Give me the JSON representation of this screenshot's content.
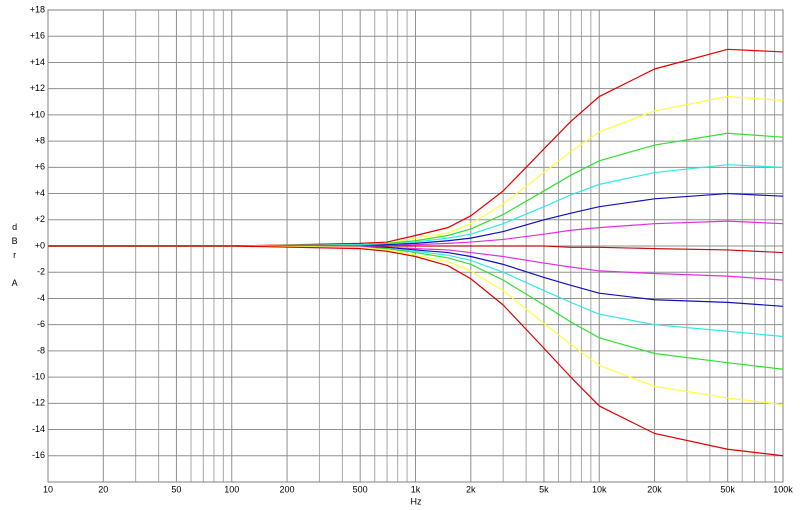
{
  "chart_data": {
    "type": "line",
    "x_label": "Hz",
    "y_label": "dBr A",
    "log_x": true,
    "grid": true,
    "xlim": [
      10,
      100000
    ],
    "ylim": [
      -18,
      18
    ],
    "xticks": [
      10,
      20,
      50,
      100,
      200,
      500,
      {
        "value": 1000,
        "label": "1k"
      },
      {
        "value": 2000,
        "label": "2k"
      },
      {
        "value": 5000,
        "label": "5k"
      },
      {
        "value": 10000,
        "label": "10k"
      },
      {
        "value": 20000,
        "label": "20k"
      },
      {
        "value": 50000,
        "label": "50k"
      },
      {
        "value": 100000,
        "label": "100k"
      }
    ],
    "xminor": [
      30,
      40,
      60,
      70,
      80,
      90,
      300,
      400,
      600,
      700,
      800,
      900,
      3000,
      4000,
      6000,
      7000,
      8000,
      9000,
      30000,
      40000,
      60000,
      70000,
      80000,
      90000
    ],
    "yticks": [
      {
        "value": 18,
        "label": "+18"
      },
      {
        "value": 16,
        "label": "+16"
      },
      {
        "value": 14,
        "label": "+14"
      },
      {
        "value": 12,
        "label": "+12"
      },
      {
        "value": 10,
        "label": "+10"
      },
      {
        "value": 8,
        "label": "+8"
      },
      {
        "value": 6,
        "label": "+6"
      },
      {
        "value": 4,
        "label": "+4"
      },
      {
        "value": 2,
        "label": "+2"
      },
      {
        "value": 0,
        "label": "+0"
      },
      -2,
      -4,
      -6,
      -8,
      -10,
      -12,
      -14,
      -16
    ],
    "x": [
      10,
      100,
      500,
      700,
      1000,
      1500,
      2000,
      3000,
      5000,
      7000,
      10000,
      20000,
      50000,
      100000
    ],
    "series": [
      {
        "color": "#e00000",
        "values": [
          0,
          0,
          0.2,
          0.3,
          0.8,
          1.4,
          2.3,
          4.2,
          7.4,
          9.5,
          11.4,
          13.5,
          15,
          14.8
        ]
      },
      {
        "color": "#ffff40",
        "values": [
          0,
          0,
          0.1,
          0.2,
          0.6,
          1.0,
          1.7,
          3.2,
          5.6,
          7.2,
          8.7,
          10.3,
          11.4,
          11.1
        ]
      },
      {
        "color": "#30e030",
        "values": [
          0,
          0,
          0.1,
          0.2,
          0.4,
          0.8,
          1.3,
          2.4,
          4.2,
          5.4,
          6.5,
          7.7,
          8.6,
          8.3
        ]
      },
      {
        "color": "#30e8e8",
        "values": [
          0,
          0,
          0.1,
          0.1,
          0.3,
          0.6,
          0.9,
          1.7,
          3.0,
          3.9,
          4.7,
          5.6,
          6.2,
          6.0
        ]
      },
      {
        "color": "#1010c0",
        "values": [
          0,
          0,
          0,
          0.1,
          0.2,
          0.4,
          0.6,
          1.1,
          2.0,
          2.5,
          3.0,
          3.6,
          4.0,
          3.8
        ]
      },
      {
        "color": "#e030e0",
        "values": [
          0,
          0,
          0,
          0,
          0.1,
          0.2,
          0.3,
          0.5,
          0.9,
          1.2,
          1.4,
          1.7,
          1.9,
          1.7
        ]
      },
      {
        "color": "#c01010",
        "values": [
          0,
          0,
          0,
          0,
          0,
          0,
          0,
          0,
          0,
          -0.1,
          -0.1,
          -0.2,
          -0.3,
          -0.5
        ]
      },
      {
        "color": "#e030e0",
        "values": [
          0,
          0,
          0,
          -0.1,
          -0.2,
          -0.3,
          -0.5,
          -0.8,
          -1.3,
          -1.6,
          -1.9,
          -2.1,
          -2.3,
          -2.6
        ]
      },
      {
        "color": "#1010c0",
        "values": [
          0,
          0,
          -0.1,
          -0.1,
          -0.3,
          -0.5,
          -0.8,
          -1.4,
          -2.4,
          -3.0,
          -3.6,
          -4.1,
          -4.3,
          -4.6
        ]
      },
      {
        "color": "#30e8e8",
        "values": [
          0,
          0,
          -0.1,
          -0.2,
          -0.4,
          -0.7,
          -1.1,
          -2.0,
          -3.4,
          -4.3,
          -5.2,
          -6.0,
          -6.5,
          -6.9
        ]
      },
      {
        "color": "#30e030",
        "values": [
          0,
          0,
          -0.1,
          -0.2,
          -0.5,
          -0.9,
          -1.4,
          -2.6,
          -4.5,
          -5.8,
          -7.0,
          -8.2,
          -8.9,
          -9.4
        ]
      },
      {
        "color": "#ffff40",
        "values": [
          0,
          0,
          -0.1,
          -0.3,
          -0.7,
          -1.2,
          -1.9,
          -3.4,
          -5.9,
          -7.5,
          -9.1,
          -10.7,
          -11.6,
          -12.1
        ]
      },
      {
        "color": "#e00000",
        "values": [
          0,
          0,
          -0.2,
          -0.4,
          -0.8,
          -1.5,
          -2.5,
          -4.5,
          -7.8,
          -10.0,
          -12.2,
          -14.3,
          -15.5,
          -16.0
        ]
      }
    ]
  }
}
